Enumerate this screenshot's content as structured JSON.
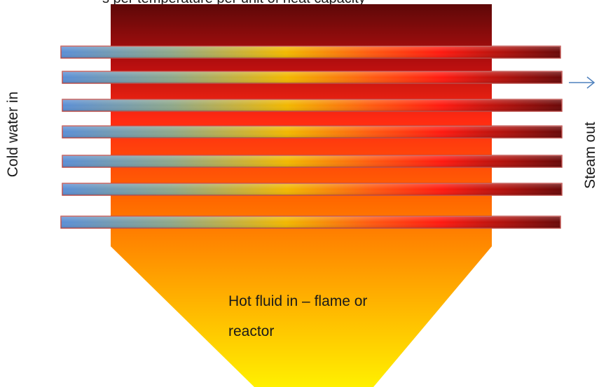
{
  "top_caption": "s per temperature per unit of heat capacity",
  "labels": {
    "cold_water_in": "Cold water in",
    "steam_out": "Steam out",
    "hot_fluid_line1": "Hot fluid in – flame or",
    "hot_fluid_line2": "reactor"
  },
  "tubes": {
    "count": 7
  },
  "colors": {
    "furnace_top": "#6b0a0a",
    "furnace_mid_red": "#ff2a10",
    "furnace_orange": "#ff8a00",
    "furnace_bottom": "#ffee00",
    "tube_cold": "#5b8fd6",
    "tube_warm": "#f2b800",
    "tube_hot": "#ff2410",
    "tube_dark": "#6a0808",
    "tube_border": "#c0504d",
    "arrow": "#4f81bd"
  }
}
